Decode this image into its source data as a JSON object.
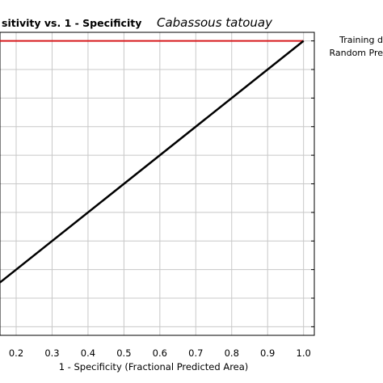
{
  "chart_data": {
    "type": "line",
    "title": "sitivity vs. 1 - Specificity",
    "subtitle": "Cabassous tatouay",
    "xlabel": "1 - Specificity  (Fractional Predicted Area)",
    "ylabel": "",
    "xlim": [
      0.155,
      1.03
    ],
    "ylim": [
      -0.03,
      1.03
    ],
    "x_ticks": [
      "0.2",
      "0.3",
      "0.4",
      "0.5",
      "0.6",
      "0.7",
      "0.8",
      "0.9",
      "1.0"
    ],
    "grid": true,
    "legend_position": "right",
    "series": [
      {
        "name": "Training d",
        "color": "#d7191c",
        "x": [
          0.155,
          1.0
        ],
        "y": [
          1.0,
          1.0
        ]
      },
      {
        "name": "Random Pre",
        "color": "#000000",
        "x": [
          0.155,
          1.0
        ],
        "y": [
          0.155,
          1.0
        ]
      }
    ]
  }
}
